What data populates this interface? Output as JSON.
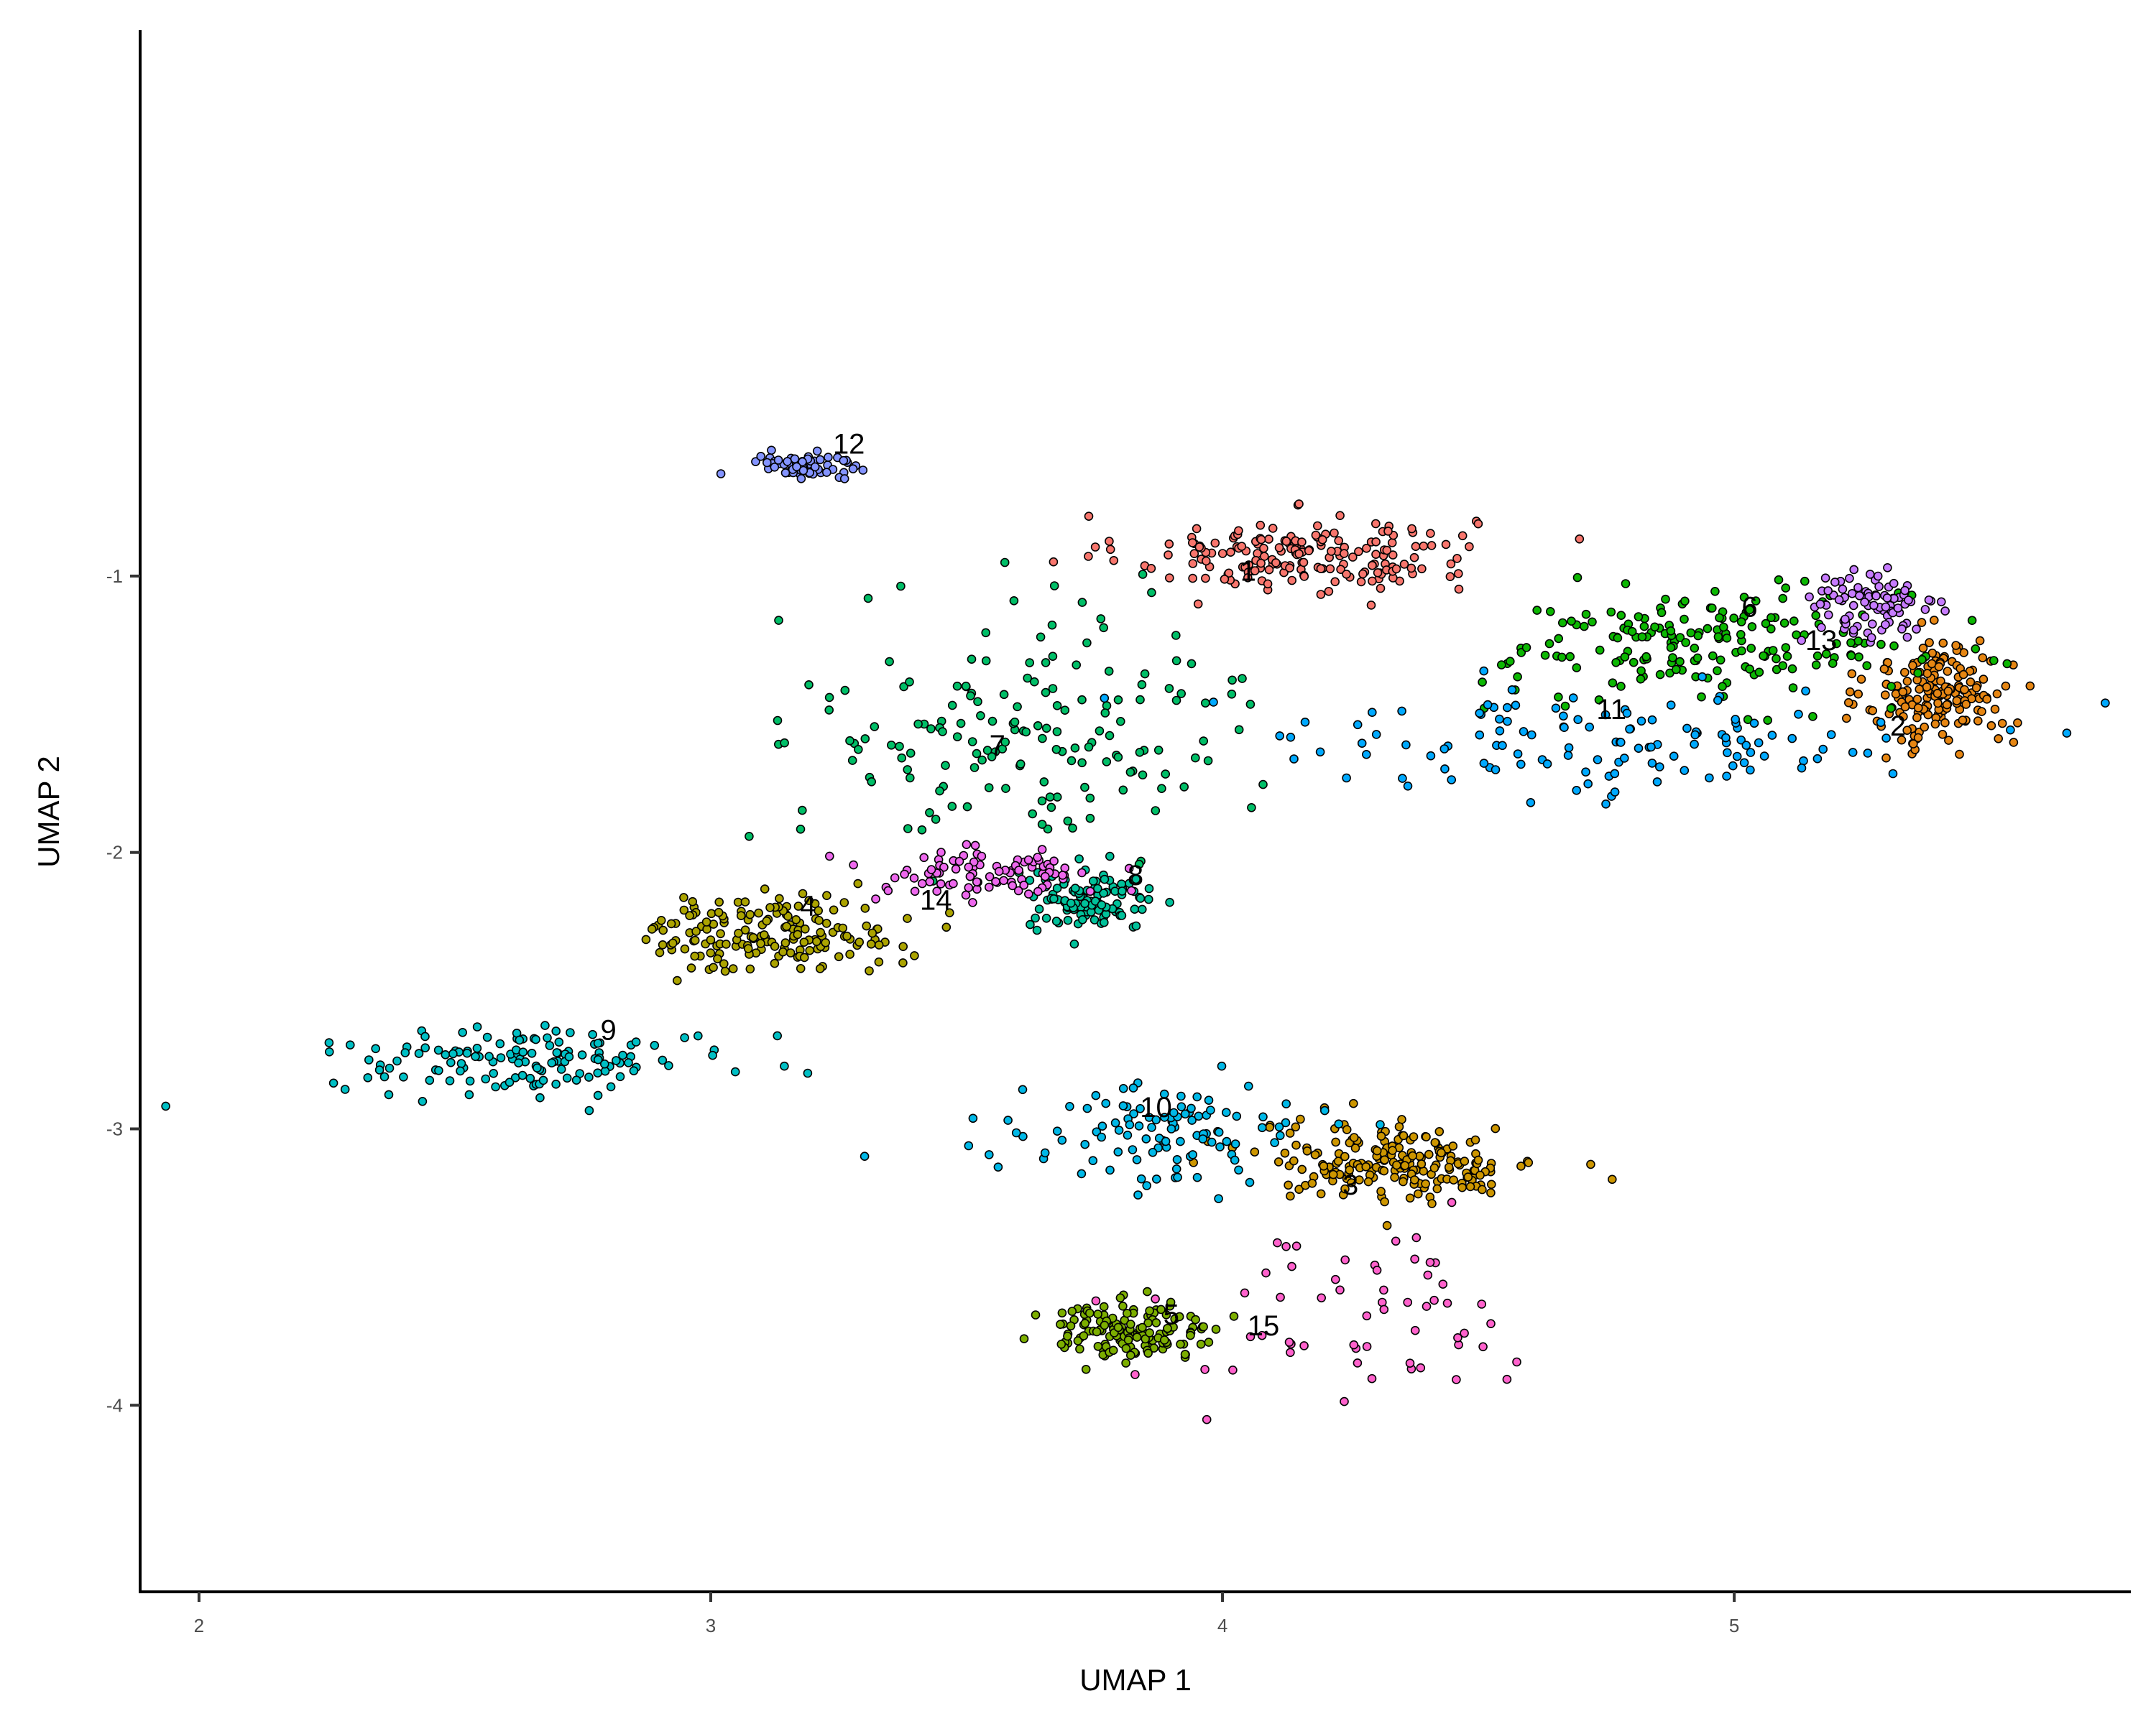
{
  "chart_data": {
    "type": "scatter",
    "title": "",
    "xlabel": "UMAP 1",
    "ylabel": "UMAP 2",
    "xlim": [
      1.885,
      5.775
    ],
    "ylim": [
      -4.675,
      0.975
    ],
    "x_ticks": [
      2,
      3,
      4,
      5
    ],
    "y_ticks": [
      -1,
      -2,
      -3,
      -4
    ],
    "grid": false,
    "legend": "none",
    "clusters": [
      {
        "id": "1",
        "color": "#F8766D",
        "label_pos": [
          4.05,
          -0.99
        ],
        "center": [
          4.15,
          -0.92
        ],
        "spread": [
          0.17,
          0.07
        ],
        "count": 190
      },
      {
        "id": "2",
        "color": "#E68613",
        "label_pos": [
          5.32,
          -1.55
        ],
        "center": [
          5.4,
          -1.43
        ],
        "spread": [
          0.07,
          0.1
        ],
        "count": 180
      },
      {
        "id": "3",
        "color": "#CD9600",
        "label_pos": [
          4.25,
          -3.21
        ],
        "center": [
          4.35,
          -3.12
        ],
        "spread": [
          0.14,
          0.07
        ],
        "count": 200
      },
      {
        "id": "4",
        "color": "#ABA300",
        "label_pos": [
          3.19,
          -2.2
        ],
        "center": [
          3.12,
          -2.29
        ],
        "spread": [
          0.12,
          0.07
        ],
        "count": 170
      },
      {
        "id": "5",
        "color": "#7CAE00",
        "label_pos": [
          3.9,
          -3.68
        ],
        "center": [
          3.82,
          -3.73
        ],
        "spread": [
          0.09,
          0.05
        ],
        "count": 150
      },
      {
        "id": "6",
        "color": "#0CB702",
        "label_pos": [
          5.03,
          -1.12
        ],
        "center": [
          4.95,
          -1.25
        ],
        "spread": [
          0.2,
          0.1
        ],
        "count": 190
      },
      {
        "id": "7",
        "color": "#00BE67",
        "label_pos": [
          3.56,
          -1.62
        ],
        "center": [
          3.62,
          -1.55
        ],
        "spread": [
          0.22,
          0.23
        ],
        "count": 170
      },
      {
        "id": "8",
        "color": "#00C19A",
        "label_pos": [
          3.83,
          -2.09
        ],
        "center": [
          3.74,
          -2.18
        ],
        "spread": [
          0.06,
          0.05
        ],
        "count": 110
      },
      {
        "id": "9",
        "color": "#00BFC4",
        "label_pos": [
          2.8,
          -2.65
        ],
        "center": [
          2.65,
          -2.75
        ],
        "spread": [
          0.2,
          0.06
        ],
        "count": 140
      },
      {
        "id": "10",
        "color": "#00B8E7",
        "label_pos": [
          3.87,
          -2.93
        ],
        "center": [
          3.88,
          -3.02
        ],
        "spread": [
          0.14,
          0.09
        ],
        "count": 110
      },
      {
        "id": "11",
        "color": "#00A9FF",
        "label_pos": [
          4.76,
          -1.49
        ],
        "center": [
          4.72,
          -1.6
        ],
        "spread": [
          0.35,
          0.1
        ],
        "count": 130
      },
      {
        "id": "12",
        "color": "#8494FF",
        "label_pos": [
          3.27,
          -0.53
        ],
        "center": [
          3.18,
          -0.6
        ],
        "spread": [
          0.05,
          0.03
        ],
        "count": 70
      },
      {
        "id": "13",
        "color": "#C77CFF",
        "label_pos": [
          5.17,
          -1.24
        ],
        "center": [
          5.27,
          -1.12
        ],
        "spread": [
          0.07,
          0.07
        ],
        "count": 90
      },
      {
        "id": "14",
        "color": "#ED68ED",
        "label_pos": [
          3.44,
          -2.18
        ],
        "center": [
          3.53,
          -2.08
        ],
        "spread": [
          0.11,
          0.05
        ],
        "count": 90
      },
      {
        "id": "15",
        "color": "#FF61CC",
        "label_pos": [
          4.08,
          -3.72
        ],
        "center": [
          4.25,
          -3.68
        ],
        "spread": [
          0.2,
          0.16
        ],
        "count": 60
      }
    ]
  }
}
